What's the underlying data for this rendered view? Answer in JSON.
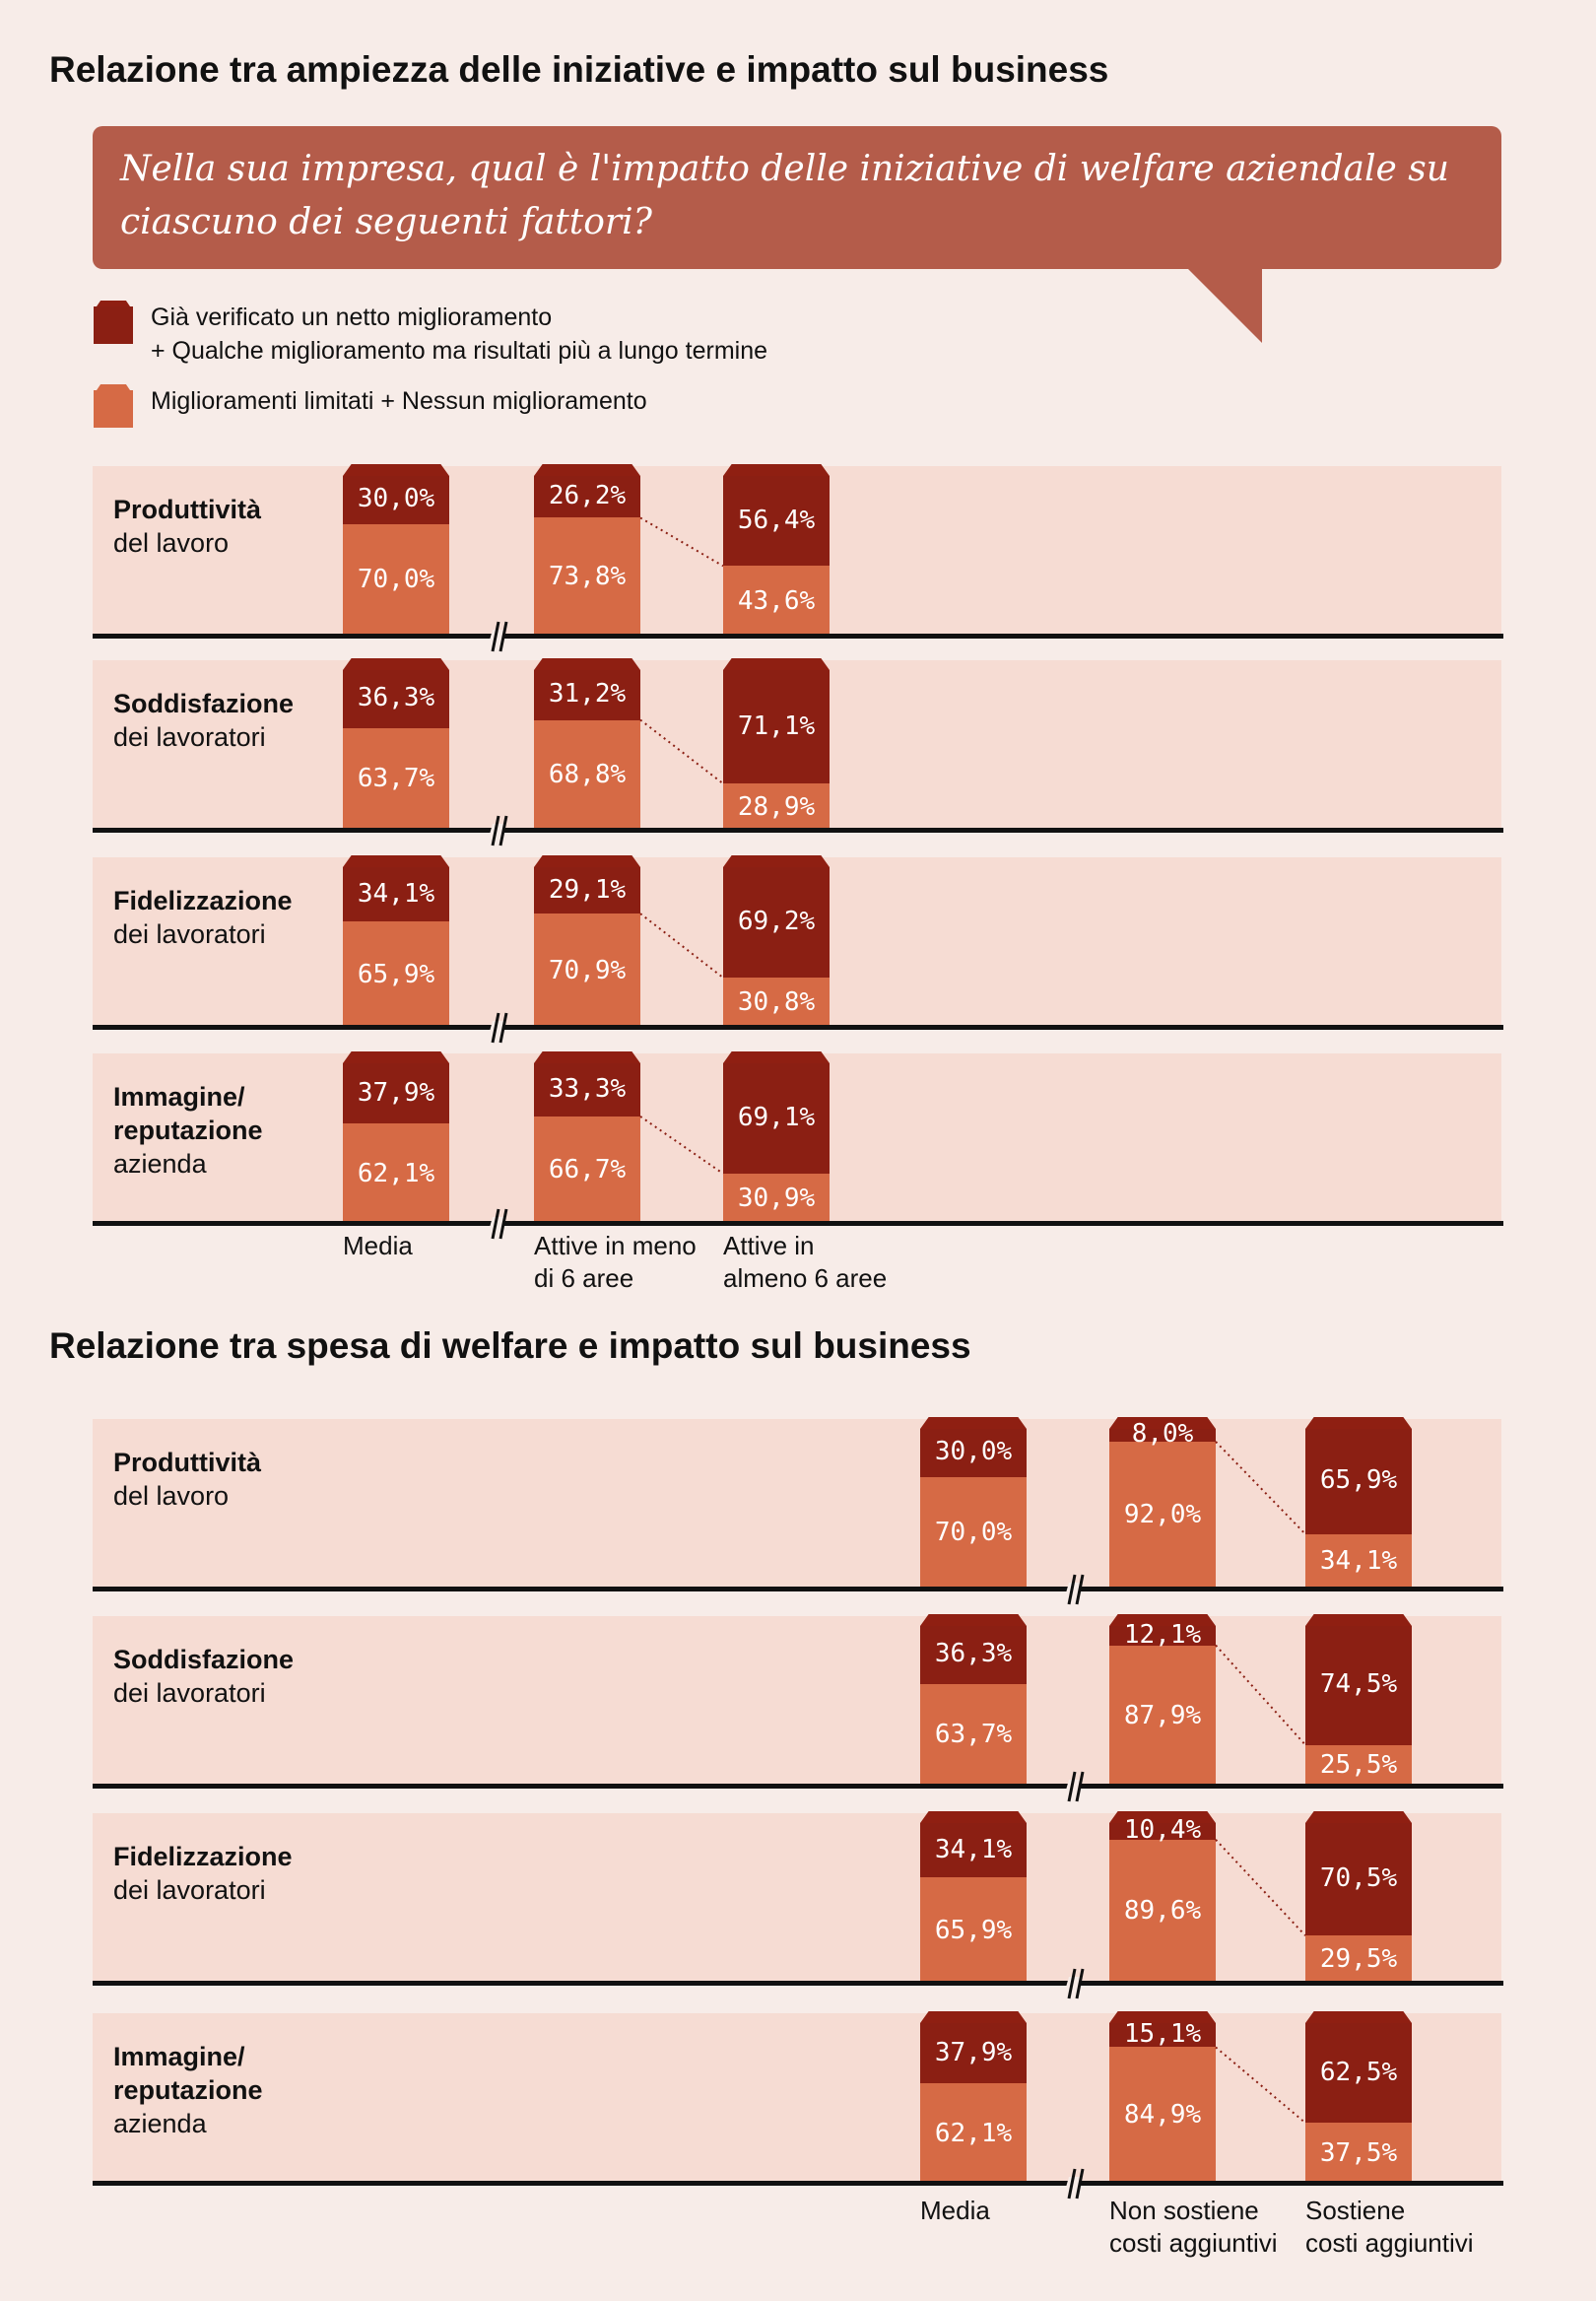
{
  "chart_data": [
    {
      "type": "bar",
      "title": "Relazione tra ampiezza delle iniziative e impatto sul business",
      "question": "Nella sua impresa, qual è l'impatto delle iniziative di welfare aziendale su ciascuno dei seguenti fattori?",
      "legend": {
        "dark": [
          "Già verificato un netto miglioramento",
          "+ Qualche miglioramento ma risultati più a lungo termine"
        ],
        "light": "Miglioramenti limitati + Nessun miglioramento"
      },
      "categories": [
        [
          "Media"
        ],
        [
          "Attive in meno",
          "di 6 aree"
        ],
        [
          "Attive in",
          "almeno 6 aree"
        ]
      ],
      "rows": [
        {
          "label_bold": [
            "Produttività"
          ],
          "label_normal": "del lavoro",
          "bars": [
            {
              "dark": 30.0,
              "light": 70.0,
              "dark_label": "30,0%",
              "light_label": "70,0%"
            },
            {
              "dark": 26.2,
              "light": 73.8,
              "dark_label": "26,2%",
              "light_label": "73,8%"
            },
            {
              "dark": 56.4,
              "light": 43.6,
              "dark_label": "56,4%",
              "light_label": "43,6%"
            }
          ]
        },
        {
          "label_bold": [
            "Soddisfazione"
          ],
          "label_normal": "dei lavoratori",
          "bars": [
            {
              "dark": 36.3,
              "light": 63.7,
              "dark_label": "36,3%",
              "light_label": "63,7%"
            },
            {
              "dark": 31.2,
              "light": 68.8,
              "dark_label": "31,2%",
              "light_label": "68,8%"
            },
            {
              "dark": 71.1,
              "light": 28.9,
              "dark_label": "71,1%",
              "light_label": "28,9%"
            }
          ]
        },
        {
          "label_bold": [
            "Fidelizzazione"
          ],
          "label_normal": "dei lavoratori",
          "bars": [
            {
              "dark": 34.1,
              "light": 65.9,
              "dark_label": "34,1%",
              "light_label": "65,9%"
            },
            {
              "dark": 29.1,
              "light": 70.9,
              "dark_label": "29,1%",
              "light_label": "70,9%"
            },
            {
              "dark": 69.2,
              "light": 30.8,
              "dark_label": "69,2%",
              "light_label": "30,8%"
            }
          ]
        },
        {
          "label_bold": [
            "Immagine/",
            "reputazione"
          ],
          "label_normal": "azienda",
          "bars": [
            {
              "dark": 37.9,
              "light": 62.1,
              "dark_label": "37,9%",
              "light_label": "62,1%"
            },
            {
              "dark": 33.3,
              "light": 66.7,
              "dark_label": "33,3%",
              "light_label": "66,7%"
            },
            {
              "dark": 69.1,
              "light": 30.9,
              "dark_label": "69,1%",
              "light_label": "30,9%"
            }
          ]
        }
      ]
    },
    {
      "type": "bar",
      "title": "Relazione tra spesa di welfare e impatto sul business",
      "categories": [
        [
          "Media"
        ],
        [
          "Non sostiene",
          "costi aggiuntivi"
        ],
        [
          "Sostiene",
          "costi aggiuntivi"
        ]
      ],
      "rows": [
        {
          "label_bold": [
            "Produttività"
          ],
          "label_normal": "del lavoro",
          "bars": [
            {
              "dark": 30.0,
              "light": 70.0,
              "dark_label": "30,0%",
              "light_label": "70,0%"
            },
            {
              "dark": 8.0,
              "light": 92.0,
              "dark_label": "8,0%",
              "light_label": "92,0%"
            },
            {
              "dark": 65.9,
              "light": 34.1,
              "dark_label": "65,9%",
              "light_label": "34,1%"
            }
          ]
        },
        {
          "label_bold": [
            "Soddisfazione"
          ],
          "label_normal": "dei lavoratori",
          "bars": [
            {
              "dark": 36.3,
              "light": 63.7,
              "dark_label": "36,3%",
              "light_label": "63,7%"
            },
            {
              "dark": 12.1,
              "light": 87.9,
              "dark_label": "12,1%",
              "light_label": "87,9%"
            },
            {
              "dark": 74.5,
              "light": 25.5,
              "dark_label": "74,5%",
              "light_label": "25,5%"
            }
          ]
        },
        {
          "label_bold": [
            "Fidelizzazione"
          ],
          "label_normal": "dei lavoratori",
          "bars": [
            {
              "dark": 34.1,
              "light": 65.9,
              "dark_label": "34,1%",
              "light_label": "65,9%"
            },
            {
              "dark": 10.4,
              "light": 89.6,
              "dark_label": "10,4%",
              "light_label": "89,6%"
            },
            {
              "dark": 70.5,
              "light": 29.5,
              "dark_label": "70,5%",
              "light_label": "29,5%"
            }
          ]
        },
        {
          "label_bold": [
            "Immagine/",
            "reputazione"
          ],
          "label_normal": "azienda",
          "bars": [
            {
              "dark": 37.9,
              "light": 62.1,
              "dark_label": "37,9%",
              "light_label": "62,1%"
            },
            {
              "dark": 15.1,
              "light": 84.9,
              "dark_label": "15,1%",
              "light_label": "84,9%"
            },
            {
              "dark": 62.5,
              "light": 37.5,
              "dark_label": "62,5%",
              "light_label": "37,5%"
            }
          ]
        }
      ]
    }
  ],
  "colors": {
    "dark": "#8b1f13",
    "light": "#d66a45",
    "panel": "#f6dcd3",
    "bubble": "#b45c4a",
    "background": "#f7ece8"
  }
}
